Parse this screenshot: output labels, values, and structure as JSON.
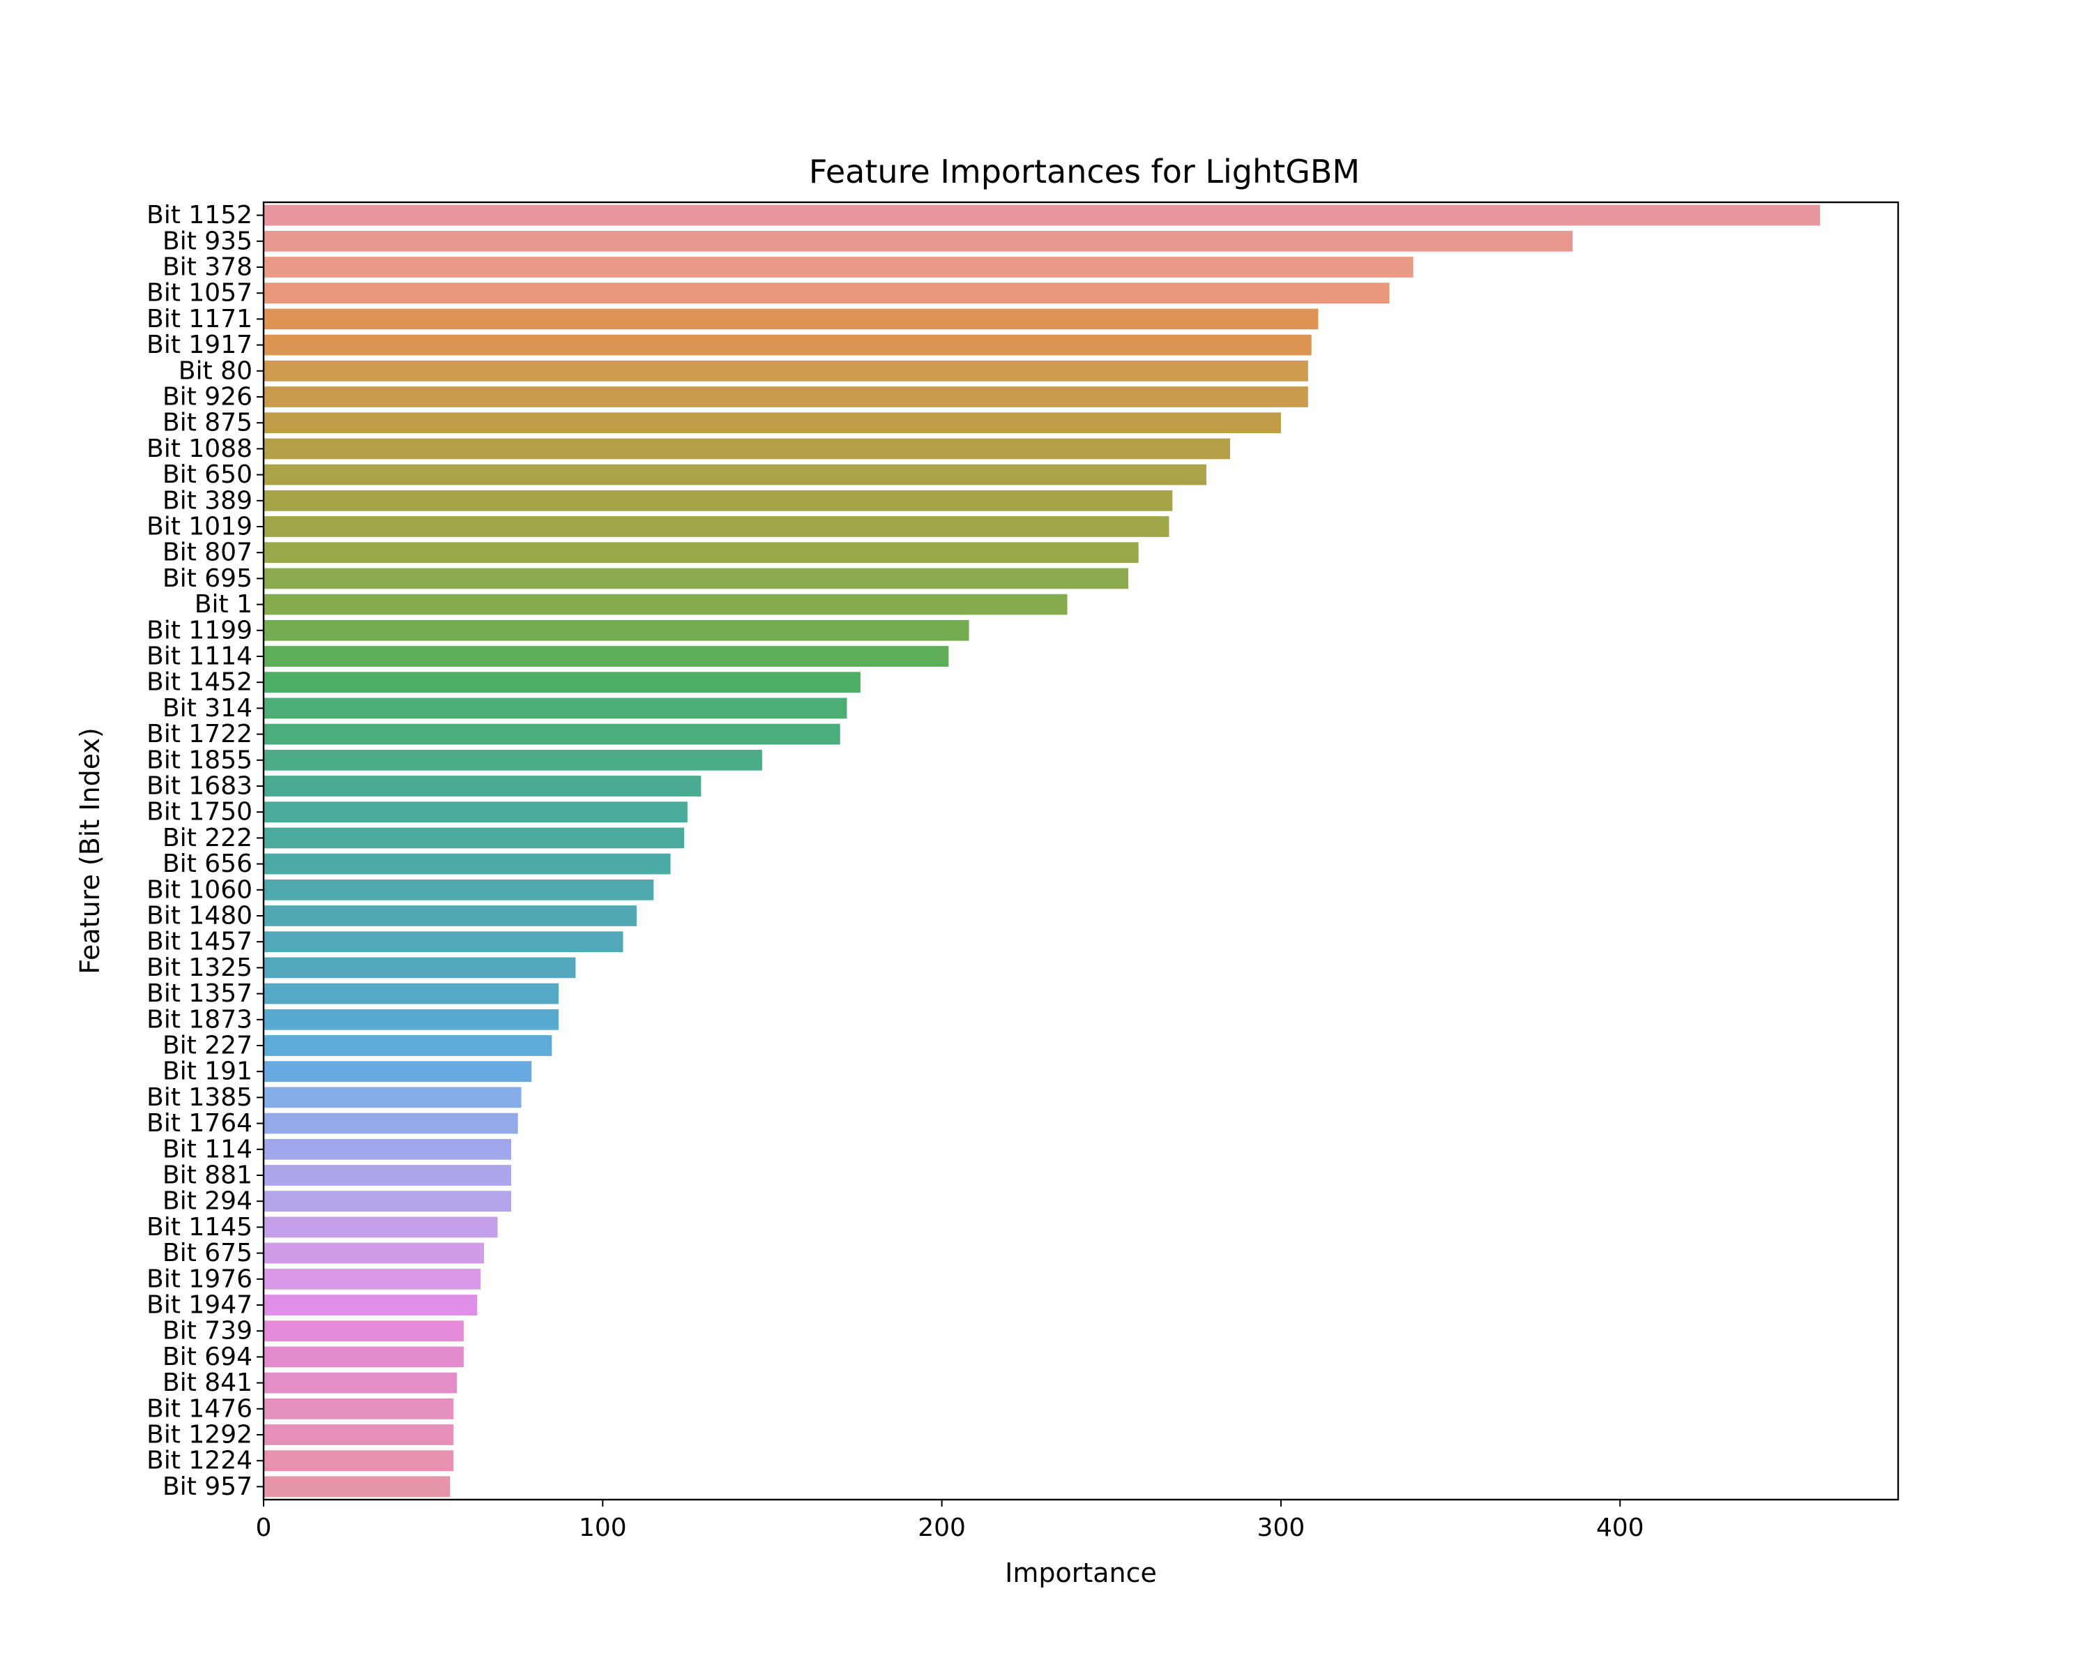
{
  "chart_data": {
    "type": "bar",
    "orientation": "horizontal",
    "title": "Feature Importances for LightGBM",
    "xlabel": "Importance",
    "ylabel": "Feature (Bit Index)",
    "xlim": [
      0,
      482
    ],
    "xticks": [
      0,
      100,
      200,
      300,
      400
    ],
    "grid": false,
    "categories": [
      "Bit 1152",
      "Bit 935",
      "Bit 378",
      "Bit 1057",
      "Bit 1171",
      "Bit 1917",
      "Bit 80",
      "Bit 926",
      "Bit 875",
      "Bit 1088",
      "Bit 650",
      "Bit 389",
      "Bit 1019",
      "Bit 807",
      "Bit 695",
      "Bit 1",
      "Bit 1199",
      "Bit 1114",
      "Bit 1452",
      "Bit 314",
      "Bit 1722",
      "Bit 1855",
      "Bit 1683",
      "Bit 1750",
      "Bit 222",
      "Bit 656",
      "Bit 1060",
      "Bit 1480",
      "Bit 1457",
      "Bit 1325",
      "Bit 1357",
      "Bit 1873",
      "Bit 227",
      "Bit 191",
      "Bit 1385",
      "Bit 1764",
      "Bit 114",
      "Bit 881",
      "Bit 294",
      "Bit 1145",
      "Bit 675",
      "Bit 1976",
      "Bit 1947",
      "Bit 739",
      "Bit 694",
      "Bit 841",
      "Bit 1476",
      "Bit 1292",
      "Bit 1224",
      "Bit 957"
    ],
    "values": [
      459,
      386,
      339,
      332,
      311,
      309,
      308,
      308,
      300,
      285,
      278,
      268,
      267,
      258,
      255,
      237,
      208,
      202,
      176,
      172,
      170,
      147,
      129,
      125,
      124,
      120,
      115,
      110,
      106,
      92,
      87,
      87,
      85,
      79,
      76,
      75,
      73,
      73,
      73,
      69,
      65,
      64,
      63,
      59,
      59,
      57,
      56,
      56,
      56,
      55
    ],
    "colors": [
      "#e8969e",
      "#e8988e",
      "#e89a86",
      "#e8987a",
      "#dd9454",
      "#dc9652",
      "#cd9a4e",
      "#c89c4b",
      "#bf9d48",
      "#b4a046",
      "#aca246",
      "#a5a447",
      "#9ea648",
      "#98a84b",
      "#8eaa4e",
      "#86ac4f",
      "#74ad4f",
      "#5dae56",
      "#4caf64",
      "#4cae74",
      "#4bad7e",
      "#4bac88",
      "#4bab92",
      "#4bab9a",
      "#4bab9f",
      "#4caaa5",
      "#4ea9ad",
      "#50a9b2",
      "#51a8b8",
      "#53a8be",
      "#56a9c6",
      "#59aad0",
      "#5eaad8",
      "#68a9e0",
      "#85aee8",
      "#94aae8",
      "#a2a6ec",
      "#ada5ec",
      "#b5a3ea",
      "#c4a0ea",
      "#d09be8",
      "#d999e8",
      "#de8ee6",
      "#e48ad8",
      "#e48bd0",
      "#e48ec8",
      "#e58ec0",
      "#e68fb8",
      "#e691b0",
      "#e694a8"
    ]
  }
}
